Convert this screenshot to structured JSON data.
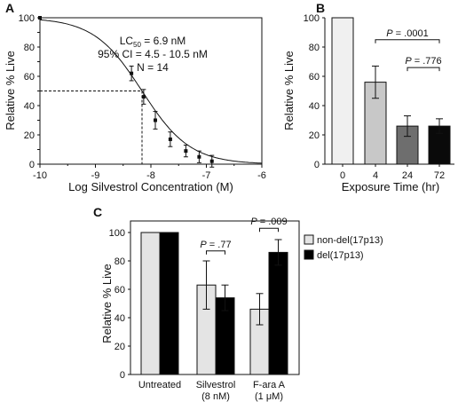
{
  "chart_data": [
    {
      "panel": "A",
      "type": "line",
      "xlabel": "Log Silvestrol Concentration (M)",
      "ylabel": "Relative  % Live",
      "xlim": [
        -10,
        -6
      ],
      "ylim": [
        0,
        100
      ],
      "x_ticks": [
        "-10",
        "-9",
        "-8",
        "-7",
        "-6"
      ],
      "y_ticks": [
        "0",
        "10",
        "20",
        "30",
        "40",
        "50",
        "60",
        "70",
        "80",
        "90",
        "100"
      ],
      "points": [
        {
          "x": -10.0,
          "y": 100,
          "err": 0
        },
        {
          "x": -8.35,
          "y": 62,
          "err": 5
        },
        {
          "x": -8.13,
          "y": 46,
          "err": 5
        },
        {
          "x": -7.92,
          "y": 30,
          "err": 6
        },
        {
          "x": -7.65,
          "y": 17,
          "err": 5
        },
        {
          "x": -7.37,
          "y": 9,
          "err": 4
        },
        {
          "x": -7.13,
          "y": 5,
          "err": 4
        },
        {
          "x": -6.9,
          "y": 2,
          "err": 4
        }
      ],
      "fit": {
        "lc50_log": -8.16,
        "hill": 1.0
      },
      "annotations": {
        "lc50_prefix": "LC",
        "lc50_sub": "50",
        "lc50_value": " = 6.9 nM",
        "ci": "95% CI = 4.5 - 10.5 nM",
        "n": "N = 14"
      },
      "guide_y": 50
    },
    {
      "panel": "B",
      "type": "bar",
      "xlabel": "Exposure Time (hr)",
      "ylabel": "Relative % Live",
      "ylim": [
        0,
        100
      ],
      "y_ticks": [
        "0",
        "20",
        "40",
        "60",
        "80",
        "100"
      ],
      "categories": [
        "0",
        "4",
        "24",
        "72"
      ],
      "values": [
        100,
        56,
        26,
        26
      ],
      "errors": [
        0,
        11,
        7,
        5
      ],
      "colors": [
        "#f0f0f0",
        "#c8c8c8",
        "#6e6e6e",
        "#0a0a0a"
      ],
      "pvalues": [
        {
          "from": 1,
          "to": 3,
          "p_label": "P",
          "p_value": " = .0001"
        },
        {
          "from": 2,
          "to": 3,
          "p_label": "P",
          "p_value": " = .776"
        }
      ]
    },
    {
      "panel": "C",
      "type": "bar",
      "ylabel": "Relative % Live",
      "ylim": [
        0,
        100
      ],
      "y_ticks": [
        "0",
        "20",
        "40",
        "60",
        "80",
        "100"
      ],
      "categories": [
        {
          "line1": "Untreated",
          "line2": ""
        },
        {
          "line1": "Silvestrol",
          "line2": "(8 nM)"
        },
        {
          "line1": "F-ara A",
          "line2": "(1 μM)"
        }
      ],
      "series": [
        {
          "name": "non-del(17p13)",
          "values": [
            100,
            63,
            46
          ],
          "errors": [
            0,
            17,
            11
          ],
          "color": "#e4e4e4"
        },
        {
          "name": "del(17p13)",
          "values": [
            100,
            54,
            86
          ],
          "errors": [
            0,
            9,
            9
          ],
          "color": "#000000"
        }
      ],
      "pvalues": [
        {
          "group": 1,
          "p_label": "P",
          "p_value": " = .77"
        },
        {
          "group": 2,
          "p_label": "P",
          "p_value": " = .009"
        }
      ]
    }
  ]
}
